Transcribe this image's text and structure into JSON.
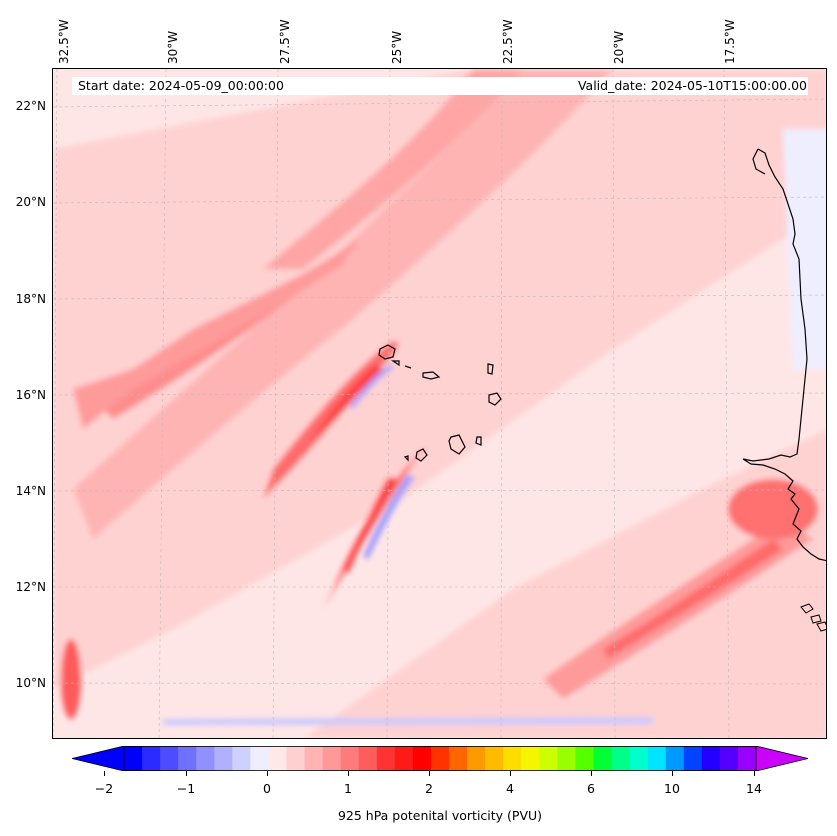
{
  "header": {
    "start_date": "Start date: 2024-05-09_00:00:00",
    "valid_date": "Valid_date: 2024-05-10T15:00:00.00"
  },
  "longitude_labels": [
    "32.5°W",
    "30°W",
    "27.5°W",
    "25°W",
    "22.5°W",
    "20°W",
    "17.5°W"
  ],
  "latitude_labels": [
    "22°N",
    "20°N",
    "18°N",
    "16°N",
    "14°N",
    "12°N",
    "10°N"
  ],
  "colorbar": {
    "label": "925 hPa potenital vorticity (PVU)",
    "ticks": [
      "−2",
      "−1",
      "0",
      "1",
      "2",
      "4",
      "6",
      "10",
      "14"
    ],
    "colors": [
      "#0000ff",
      "#2b2bff",
      "#4d4dff",
      "#7070ff",
      "#9090ff",
      "#b0b0ff",
      "#d0d0ff",
      "#eeeeff",
      "#ffe8e8",
      "#ffd0d0",
      "#ffb3b3",
      "#ff9999",
      "#ff7a7a",
      "#ff5c5c",
      "#ff3333",
      "#ff1a1a",
      "#ff0000",
      "#ff3300",
      "#ff6600",
      "#ff9900",
      "#ffbb00",
      "#ffdd00",
      "#f5f500",
      "#ccff00",
      "#99ff00",
      "#55ff00",
      "#00ff33",
      "#00ff88",
      "#00ffcc",
      "#00e5ff",
      "#0099ff",
      "#0044ff",
      "#2200ff",
      "#5500ff",
      "#9900ff"
    ],
    "under_color": "#0000ff",
    "over_color": "#cc00ff"
  },
  "map": {
    "background_color": "#ffe9e9",
    "coastline_color": "#000000"
  }
}
